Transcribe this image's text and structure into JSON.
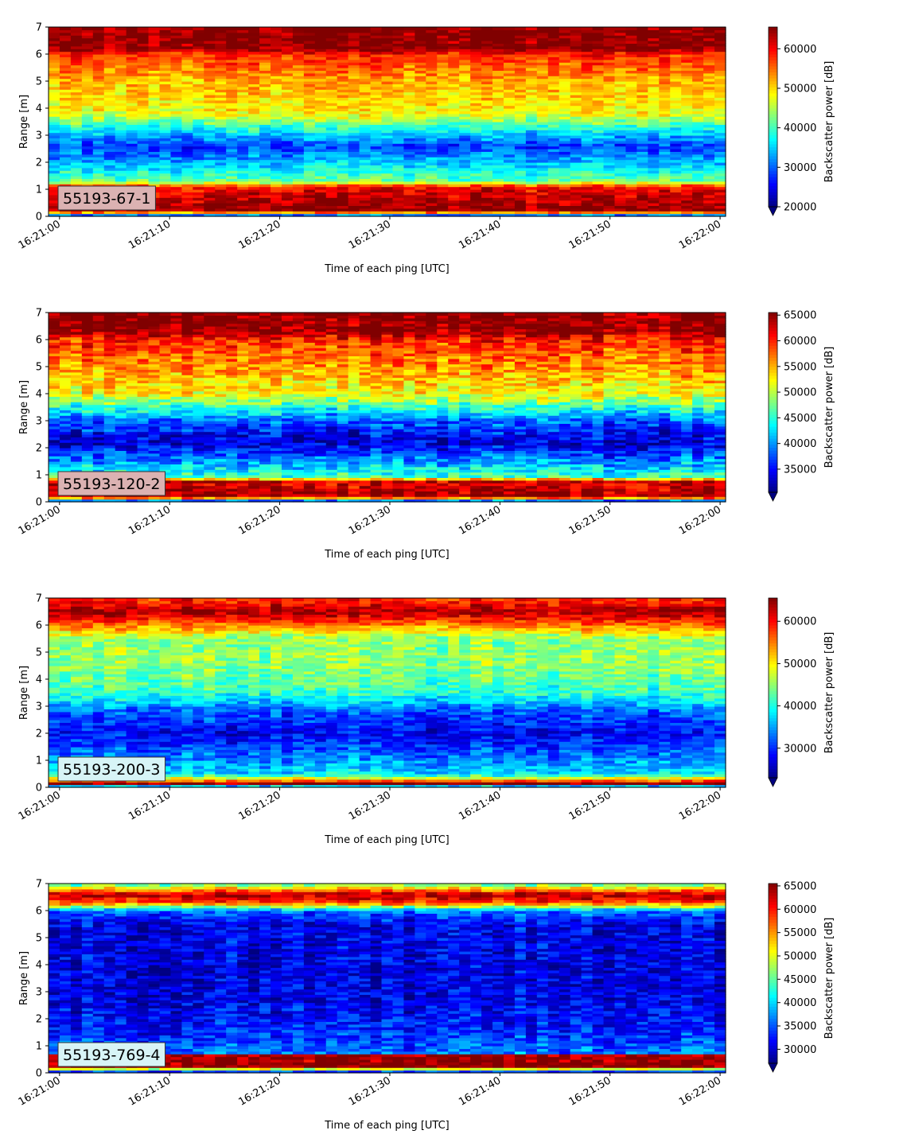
{
  "chart_data": [
    {
      "type": "heatmap",
      "label": "55193-67-1",
      "label_bg": "#dbb2b2",
      "xlabel": "Time of each ping [UTC]",
      "ylabel": "Range [m]",
      "x_ticks": [
        "16:21:00",
        "16:21:10",
        "16:21:20",
        "16:21:30",
        "16:21:40",
        "16:21:50",
        "16:22:00"
      ],
      "x_range": [
        "16:20:59",
        "16:22:00.5"
      ],
      "y_ticks": [
        0,
        1,
        2,
        3,
        4,
        5,
        6,
        7
      ],
      "ylim": [
        0,
        7
      ],
      "colorbar": {
        "label": "Backscatter power [dB]",
        "ticks": [
          20000,
          30000,
          40000,
          50000,
          60000
        ],
        "min": 20000,
        "max": 65500,
        "extend": "min"
      },
      "profile": [
        {
          "range": 0.0,
          "value": 20000
        },
        {
          "range": 0.2,
          "value": 65000
        },
        {
          "range": 1.1,
          "value": 60000
        },
        {
          "range": 1.3,
          "value": 42000
        },
        {
          "range": 1.9,
          "value": 35000
        },
        {
          "range": 2.6,
          "value": 28000
        },
        {
          "range": 3.2,
          "value": 37000
        },
        {
          "range": 3.8,
          "value": 48000
        },
        {
          "range": 5.0,
          "value": 52000
        },
        {
          "range": 6.0,
          "value": 58000
        },
        {
          "range": 6.2,
          "value": 65000
        },
        {
          "range": 7.0,
          "value": 65000
        }
      ]
    },
    {
      "type": "heatmap",
      "label": "55193-120-2",
      "label_bg": "#dbb2b2",
      "xlabel": "Time of each ping [UTC]",
      "ylabel": "Range [m]",
      "x_ticks": [
        "16:21:00",
        "16:21:10",
        "16:21:20",
        "16:21:30",
        "16:21:40",
        "16:21:50",
        "16:22:00"
      ],
      "x_range": [
        "16:20:59",
        "16:22:00.5"
      ],
      "y_ticks": [
        0,
        1,
        2,
        3,
        4,
        5,
        6,
        7
      ],
      "ylim": [
        0,
        7
      ],
      "colorbar": {
        "label": "Backscatter power [dB]",
        "ticks": [
          35000,
          40000,
          45000,
          50000,
          55000,
          60000,
          65000
        ],
        "min": 30500,
        "max": 65500,
        "extend": "min"
      },
      "profile": [
        {
          "range": 0.0,
          "value": 30500
        },
        {
          "range": 0.2,
          "value": 65000
        },
        {
          "range": 0.8,
          "value": 62000
        },
        {
          "range": 0.9,
          "value": 46000
        },
        {
          "range": 1.5,
          "value": 40000
        },
        {
          "range": 2.2,
          "value": 33000
        },
        {
          "range": 3.0,
          "value": 38000
        },
        {
          "range": 4.0,
          "value": 52000
        },
        {
          "range": 5.0,
          "value": 56000
        },
        {
          "range": 6.0,
          "value": 60000
        },
        {
          "range": 6.3,
          "value": 65000
        },
        {
          "range": 7.0,
          "value": 65000
        }
      ]
    },
    {
      "type": "heatmap",
      "label": "55193-200-3",
      "label_bg": "#d7f4f6",
      "xlabel": "Time of each ping [UTC]",
      "ylabel": "Range [m]",
      "x_ticks": [
        "16:21:00",
        "16:21:10",
        "16:21:20",
        "16:21:30",
        "16:21:40",
        "16:21:50",
        "16:22:00"
      ],
      "x_range": [
        "16:20:59",
        "16:22:00.5"
      ],
      "y_ticks": [
        0,
        1,
        2,
        3,
        4,
        5,
        6,
        7
      ],
      "ylim": [
        0,
        7
      ],
      "colorbar": {
        "label": "Backscatter power [dB]",
        "ticks": [
          30000,
          40000,
          50000,
          60000
        ],
        "min": 23000,
        "max": 65500,
        "extend": "min"
      },
      "profile": [
        {
          "range": 0.0,
          "value": 23000
        },
        {
          "range": 0.15,
          "value": 65000
        },
        {
          "range": 0.3,
          "value": 52000
        },
        {
          "range": 0.5,
          "value": 38000
        },
        {
          "range": 1.2,
          "value": 33000
        },
        {
          "range": 2.0,
          "value": 28000
        },
        {
          "range": 2.8,
          "value": 32000
        },
        {
          "range": 3.5,
          "value": 41000
        },
        {
          "range": 4.5,
          "value": 45000
        },
        {
          "range": 5.5,
          "value": 45000
        },
        {
          "range": 6.1,
          "value": 57000
        },
        {
          "range": 6.5,
          "value": 64000
        },
        {
          "range": 7.0,
          "value": 58000
        }
      ]
    },
    {
      "type": "heatmap",
      "label": "55193-769-4",
      "label_bg": "#d7f4f6",
      "xlabel": "Time of each ping [UTC]",
      "ylabel": "Range [m]",
      "x_ticks": [
        "16:21:00",
        "16:21:10",
        "16:21:20",
        "16:21:30",
        "16:21:40",
        "16:21:50",
        "16:22:00"
      ],
      "x_range": [
        "16:20:59",
        "16:22:00.5"
      ],
      "y_ticks": [
        0,
        1,
        2,
        3,
        4,
        5,
        6,
        7
      ],
      "ylim": [
        0,
        7
      ],
      "colorbar": {
        "label": "Backscatter power [dB]",
        "ticks": [
          30000,
          35000,
          40000,
          45000,
          50000,
          55000,
          60000,
          65000
        ],
        "min": 27000,
        "max": 65500,
        "extend": "min"
      },
      "profile": [
        {
          "range": 0.0,
          "value": 27000
        },
        {
          "range": 0.25,
          "value": 65000
        },
        {
          "range": 0.65,
          "value": 64000
        },
        {
          "range": 0.75,
          "value": 36000
        },
        {
          "range": 1.5,
          "value": 33000
        },
        {
          "range": 3.0,
          "value": 30500
        },
        {
          "range": 5.5,
          "value": 31000
        },
        {
          "range": 6.0,
          "value": 36000
        },
        {
          "range": 6.3,
          "value": 58000
        },
        {
          "range": 6.6,
          "value": 64000
        },
        {
          "range": 7.0,
          "value": 44000
        }
      ]
    }
  ]
}
